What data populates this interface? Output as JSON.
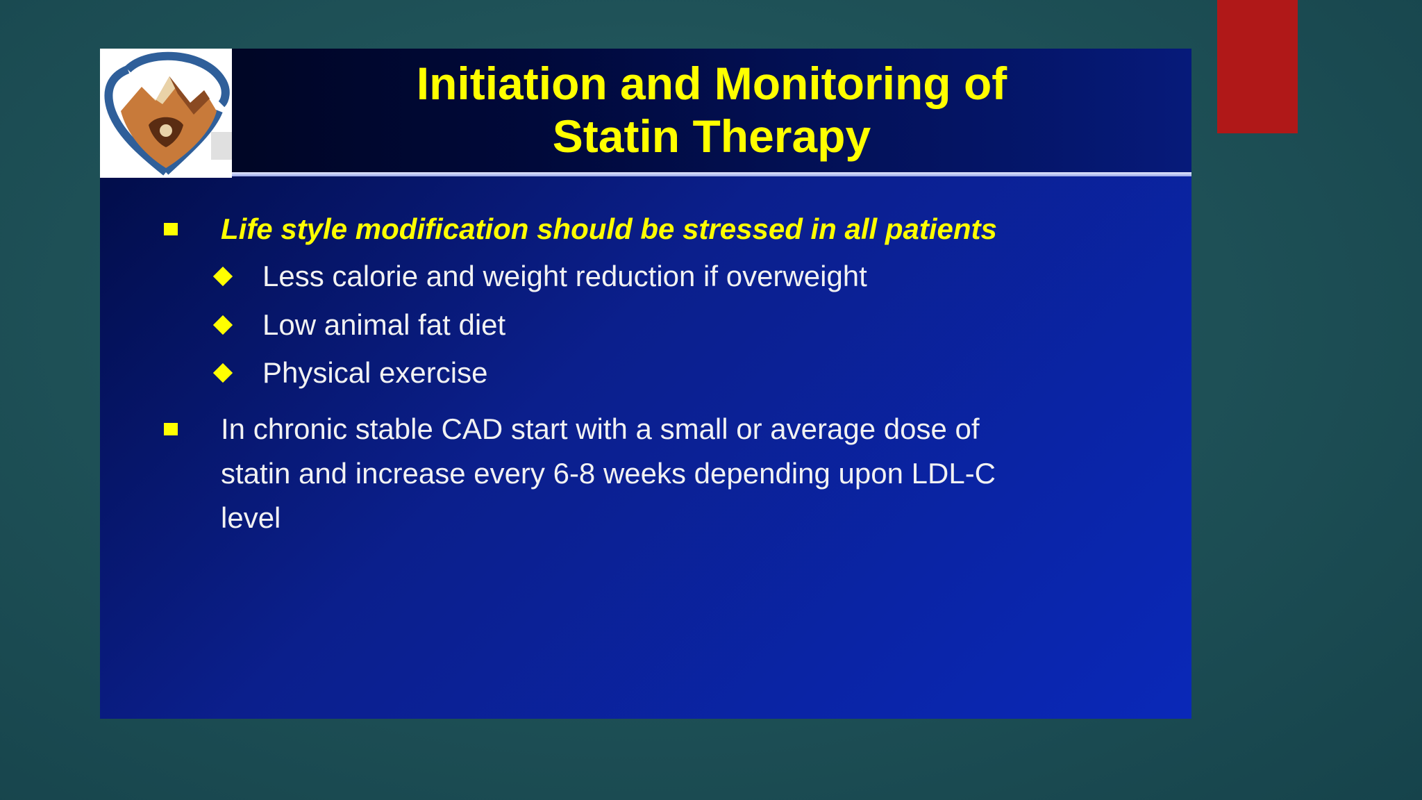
{
  "slide": {
    "title_line1": "Initiation and Monitoring of",
    "title_line2": "Statin Therapy",
    "logo": {
      "icon": "heart-mountain-logo-icon"
    },
    "bullets": [
      {
        "text": "Life style modification should be stressed in all patients",
        "sub_items": [
          "Less calorie and weight reduction if overweight",
          "Low animal fat diet",
          "Physical exercise"
        ]
      },
      {
        "lines": [
          "In chronic stable CAD start with a small or average dose of",
          "statin and increase every 6-8 weeks depending upon LDL-C",
          "level"
        ]
      }
    ]
  },
  "colors": {
    "title": "#ffff00",
    "accent": "#b01818",
    "slide_bg": "#0a28b8",
    "body_text": "#f2f2f2"
  }
}
